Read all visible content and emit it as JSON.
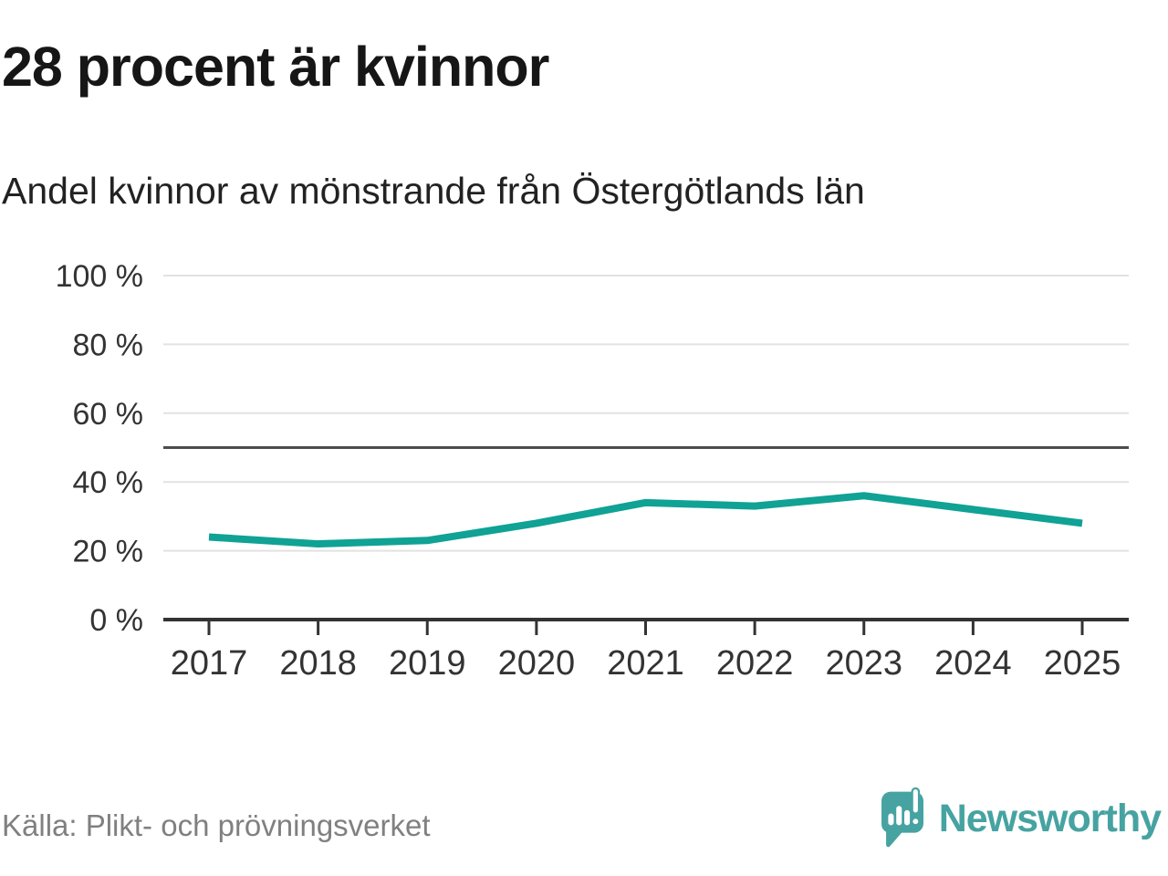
{
  "header": {
    "title": "28 procent är kvinnor",
    "subtitle": "Andel kvinnor av mönstrande från Östergötlands län"
  },
  "chart_data": {
    "type": "line",
    "title": "28 procent är kvinnor",
    "subtitle": "Andel kvinnor av mönstrande från Östergötlands län",
    "categories": [
      "2017",
      "2018",
      "2019",
      "2020",
      "2021",
      "2022",
      "2023",
      "2024",
      "2025"
    ],
    "series": [
      {
        "name": "Andel kvinnor av mönstrande",
        "values": [
          24,
          22,
          23,
          28,
          34,
          33,
          36,
          32,
          28
        ]
      }
    ],
    "unit": "%",
    "ylabel": "",
    "xlabel": "",
    "ylim": [
      0,
      100
    ],
    "yticks": [
      0,
      20,
      40,
      60,
      80,
      100
    ],
    "ytick_suffix": " %",
    "reference_line": 50,
    "grid": true,
    "legend": "none"
  },
  "footer": {
    "source": "Källa: Plikt- och prövningsverket",
    "brand": "Newsworthy"
  },
  "colors": {
    "line": "#0fa295",
    "brand_teal": "#46a3a1",
    "grid": "#e2e2e2",
    "reference": "#4d4d4d",
    "axis": "#333333",
    "tick_label": "#333333",
    "title_text": "#161616",
    "muted_text": "#808080"
  }
}
